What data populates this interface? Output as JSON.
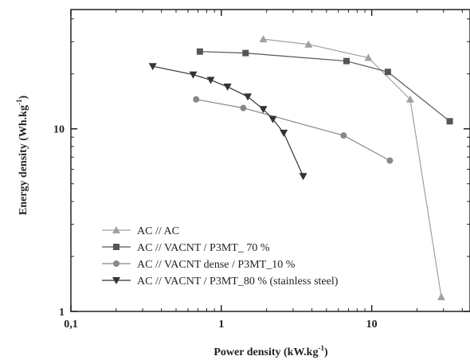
{
  "chart_data": {
    "type": "line",
    "x_scale": "log",
    "y_scale": "log",
    "xlim": [
      0.1,
      45
    ],
    "ylim": [
      1,
      45
    ],
    "grid": false,
    "legend_placement": "bottom-left",
    "xlabel": {
      "main": "Power density (kW.kg",
      "sup": "-1",
      "tail": ")"
    },
    "ylabel": {
      "main": "Energy density (Wh.kg",
      "sup": "-1",
      "tail": ")"
    },
    "x_ticks": [
      {
        "value": 0.1,
        "label": "0,1"
      },
      {
        "value": 1,
        "label": "1"
      },
      {
        "value": 10,
        "label": "10"
      }
    ],
    "y_ticks": [
      {
        "value": 1,
        "label": "1"
      },
      {
        "value": 10,
        "label": "10"
      }
    ],
    "series": [
      {
        "name": "AC // AC",
        "marker": "triangle-up",
        "color": "#a0a0a0",
        "x": [
          1.9,
          3.8,
          9.5,
          18.0,
          29.0
        ],
        "y": [
          31.0,
          29.0,
          24.5,
          14.5,
          1.2
        ]
      },
      {
        "name": "AC // VACNT / P3MT_ 70 %",
        "marker": "square",
        "color": "#555555",
        "x": [
          0.72,
          1.45,
          6.8,
          12.8,
          33.0
        ],
        "y": [
          26.5,
          26.0,
          23.5,
          20.5,
          11.0
        ]
      },
      {
        "name": "AC // VACNT dense / P3MT_10 %",
        "marker": "circle",
        "color": "#888888",
        "x": [
          0.68,
          1.4,
          6.5,
          13.2
        ],
        "y": [
          14.5,
          13.0,
          9.2,
          6.7
        ]
      },
      {
        "name": "AC // VACNT / P3MT_80 % (stainless steel)",
        "marker": "triangle-down",
        "color": "#333333",
        "x": [
          0.35,
          0.65,
          0.85,
          1.1,
          1.5,
          1.9,
          2.2,
          2.6,
          3.5
        ],
        "y": [
          22.0,
          19.8,
          18.5,
          17.0,
          15.0,
          12.8,
          11.3,
          9.5,
          5.5
        ]
      }
    ]
  }
}
